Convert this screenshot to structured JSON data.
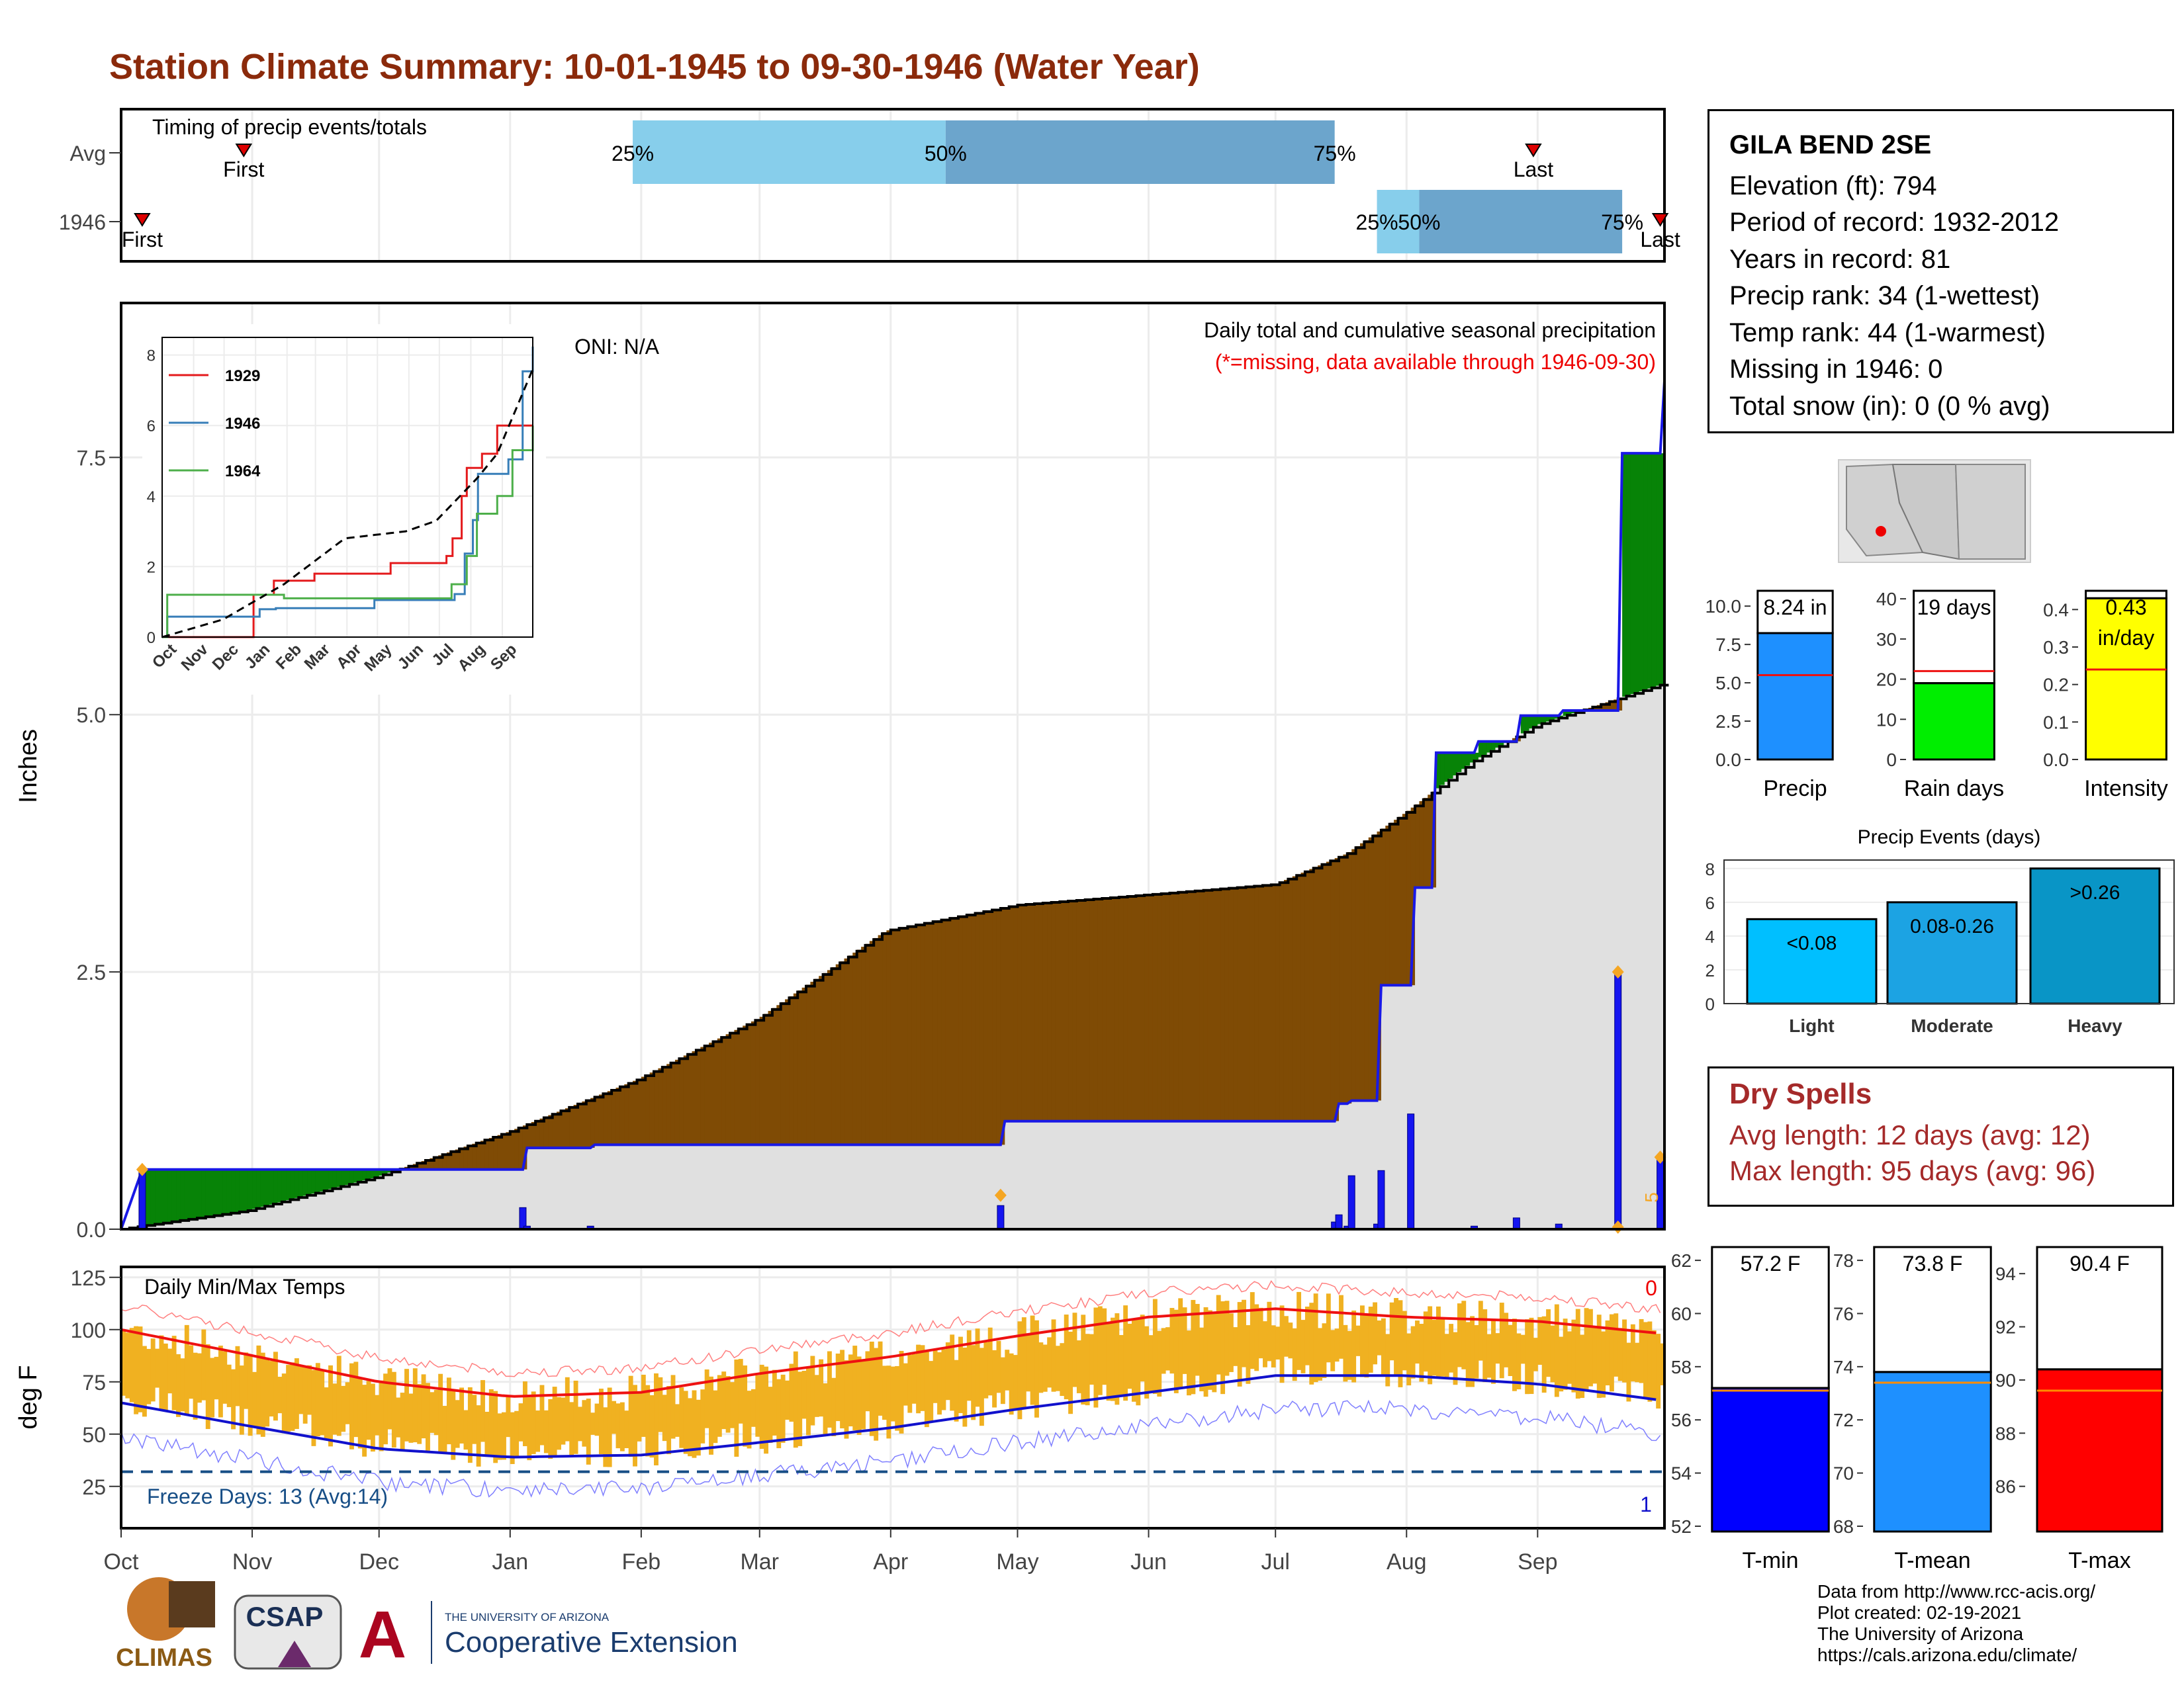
{
  "title": "Station Climate Summary: 10-01-1945 to 09-30-1946 (Water Year)",
  "months": [
    "Oct",
    "Nov",
    "Dec",
    "Jan",
    "Feb",
    "Mar",
    "Apr",
    "May",
    "Jun",
    "Jul",
    "Aug",
    "Sep"
  ],
  "timing": {
    "label": "Timing of precip events/totals",
    "rows": [
      "Avg",
      "1946"
    ],
    "avg": {
      "first": "First",
      "last": "Last",
      "p25": "25%",
      "p50": "50%",
      "p75": "75%"
    },
    "y1946": {
      "first": "First",
      "last": "Last",
      "p25": "25%",
      "p50": "50%",
      "p75": "75%"
    }
  },
  "precip_panel": {
    "ylabel": "Inches",
    "ticks": [
      "0.0",
      "2.5",
      "5.0",
      "7.5"
    ],
    "oni": "ONI: N/A",
    "caption": "Daily total and cumulative seasonal precipitation",
    "missing_note": "(*=missing, data available through 1946-09-30)",
    "side_mark": "5"
  },
  "inset": {
    "ticks": [
      "0",
      "2",
      "4",
      "6",
      "8"
    ],
    "months": [
      "Oct",
      "Nov",
      "Dec",
      "Jan",
      "Feb",
      "Mar",
      "Apr",
      "May",
      "Jun",
      "Jul",
      "Aug",
      "Sep"
    ],
    "legend": [
      "1929",
      "1946",
      "1964"
    ]
  },
  "temp_panel": {
    "ylabel": "deg F",
    "ticks": [
      "25",
      "50",
      "75",
      "100",
      "125"
    ],
    "label": "Daily Min/Max Temps",
    "freeze": "Freeze Days: 13 (Avg:14)",
    "count_top": "0",
    "count_bottom": "1"
  },
  "station": {
    "name": "GILA BEND 2SE",
    "lines": [
      "Elevation (ft): 794",
      "Period of record: 1932-2012",
      "Years in record: 81",
      "Precip rank: 34 (1-wettest)",
      "Temp rank: 44 (1-warmest)",
      "Missing in 1946: 0",
      "Total snow (in): 0 (0 % avg)"
    ]
  },
  "bars": {
    "precip": {
      "label": "Precip",
      "value_label": "8.24 in",
      "ticks": [
        "0.0",
        "2.5",
        "5.0",
        "7.5",
        "10.0"
      ]
    },
    "raindays": {
      "label": "Rain days",
      "value_label": "19 days",
      "ticks": [
        "0",
        "10",
        "20",
        "30",
        "40"
      ]
    },
    "intensity": {
      "label": "Intensity",
      "value_label": "0.43",
      "value_unit": "in/day",
      "ticks": [
        "0.0",
        "0.1",
        "0.2",
        "0.3",
        "0.4"
      ]
    }
  },
  "events": {
    "title": "Precip Events (days)",
    "ticks": [
      "0",
      "2",
      "4",
      "6",
      "8"
    ],
    "cats": [
      "Light",
      "Moderate",
      "Heavy"
    ],
    "labels": [
      "<0.08",
      "0.08-0.26",
      ">0.26"
    ]
  },
  "dry_spells": {
    "title": "Dry Spells",
    "avg": "Avg length: 12 days (avg: 12)",
    "max": "Max length: 95 days (avg: 96)"
  },
  "temps": {
    "tmin": {
      "label": "T-min",
      "value_label": "57.2 F",
      "ticks": [
        "52",
        "54",
        "56",
        "58",
        "60",
        "62"
      ]
    },
    "tmean": {
      "label": "T-mean",
      "value_label": "73.8 F",
      "ticks": [
        "68",
        "70",
        "72",
        "74",
        "76",
        "78"
      ]
    },
    "tmax": {
      "label": "T-max",
      "value_label": "90.4 F",
      "ticks": [
        "86",
        "88",
        "90",
        "92",
        "94"
      ]
    }
  },
  "logos": {
    "climas": "CLIMAS",
    "csap": "CSAP",
    "ua_small": "THE UNIVERSITY OF ARIZONA",
    "ua_big": "Cooperative Extension"
  },
  "credits": [
    "Data from http://www.rcc-acis.org/",
    "Plot created: 02-19-2021",
    "The University of Arizona",
    "https://cals.arizona.edu/climate/"
  ],
  "chart_data": [
    {
      "type": "line",
      "title": "Daily total and cumulative seasonal precipitation",
      "ylabel": "Inches",
      "ylim": [
        0,
        9
      ],
      "x_unit": "day of water year (Oct 1 = 0)",
      "series": [
        {
          "name": "1946",
          "x": [
            0,
            5,
            95,
            96,
            111,
            112,
            208,
            209,
            287,
            288,
            290,
            291,
            297,
            298,
            305,
            306,
            310,
            311,
            320,
            321,
            330,
            331,
            340,
            341,
            354,
            355,
            364,
            365
          ],
          "y": [
            0,
            0.58,
            0.58,
            0.79,
            0.79,
            0.82,
            0.82,
            1.05,
            1.05,
            1.22,
            1.22,
            1.25,
            1.25,
            2.37,
            2.37,
            3.32,
            3.32,
            4.63,
            4.63,
            4.74,
            4.74,
            4.99,
            4.99,
            5.04,
            5.04,
            7.54,
            7.54,
            8.24
          ]
        },
        {
          "name": "Avg",
          "x": [
            0,
            30,
            60,
            92,
            122,
            151,
            181,
            212,
            243,
            273,
            290,
            304,
            320,
            335,
            350,
            365
          ],
          "y": [
            0,
            0.18,
            0.5,
            0.95,
            1.45,
            2.05,
            2.9,
            3.15,
            3.25,
            3.35,
            3.65,
            4.05,
            4.55,
            4.9,
            5.1,
            5.3
          ]
        }
      ],
      "daily_precip": {
        "x": [
          5,
          95,
          96,
          111,
          208,
          287,
          288,
          290,
          291,
          297,
          298,
          305,
          320,
          330,
          340,
          354,
          364
        ],
        "y": [
          0.58,
          0.21,
          0.03,
          0.03,
          0.23,
          0.07,
          0.14,
          0.03,
          0.52,
          0.05,
          0.57,
          1.12,
          0.03,
          0.11,
          0.05,
          2.5,
          0.7
        ]
      }
    },
    {
      "type": "line",
      "title": "Cumulative precipitation inset",
      "ylim": [
        0,
        8.5
      ],
      "series": [
        {
          "name": "1929",
          "x": [
            0,
            60,
            90,
            110,
            150,
            215,
            225,
            262,
            280,
            286,
            295,
            300,
            315,
            330,
            365
          ],
          "y": [
            0,
            0,
            1.2,
            1.6,
            1.8,
            1.8,
            2.1,
            2.1,
            2.3,
            2.8,
            4.0,
            4.8,
            5.2,
            6.0,
            6.0
          ]
        },
        {
          "name": "1946",
          "x": [
            0,
            5,
            95,
            96,
            111,
            112,
            208,
            209,
            287,
            288,
            298,
            306,
            311,
            341,
            355,
            365
          ],
          "y": [
            0,
            0.58,
            0.58,
            0.79,
            0.79,
            0.82,
            0.82,
            1.05,
            1.05,
            1.22,
            2.37,
            3.32,
            4.63,
            5.04,
            7.54,
            8.24
          ]
        },
        {
          "name": "1964",
          "x": [
            0,
            5,
            90,
            120,
            262,
            285,
            300,
            310,
            330,
            345,
            365
          ],
          "y": [
            0,
            1.2,
            1.2,
            1.1,
            1.1,
            1.5,
            2.3,
            3.5,
            4.0,
            5.3,
            6.0
          ]
        },
        {
          "name": "Avg",
          "x": [
            0,
            60,
            120,
            180,
            240,
            270,
            290,
            310,
            330,
            365
          ],
          "y": [
            0,
            0.5,
            1.5,
            2.8,
            3.0,
            3.3,
            3.9,
            4.5,
            5.2,
            7.6
          ]
        }
      ]
    },
    {
      "type": "line",
      "title": "Daily Min/Max Temps",
      "ylabel": "deg F",
      "ylim": [
        0,
        130
      ],
      "series": [
        {
          "name": "Avg max",
          "x": [
            0,
            30,
            61,
            92,
            123,
            151,
            182,
            212,
            243,
            273,
            304,
            335,
            365
          ],
          "y": [
            100,
            88,
            75,
            68,
            70,
            79,
            87,
            97,
            106,
            110,
            106,
            104,
            98
          ]
        },
        {
          "name": "Avg min",
          "x": [
            0,
            30,
            61,
            92,
            123,
            151,
            182,
            212,
            243,
            273,
            304,
            335,
            365
          ],
          "y": [
            65,
            54,
            43,
            39,
            40,
            46,
            53,
            62,
            70,
            78,
            78,
            74,
            66
          ]
        }
      ],
      "freeze_line": 32
    },
    {
      "type": "bar",
      "title": "Precip",
      "categories": [
        "Precip"
      ],
      "values": [
        8.24
      ],
      "avg": 5.5,
      "ylim": [
        0,
        11
      ]
    },
    {
      "type": "bar",
      "title": "Rain days",
      "categories": [
        "Rain days"
      ],
      "values": [
        19
      ],
      "avg": 22,
      "ylim": [
        0,
        42
      ]
    },
    {
      "type": "bar",
      "title": "Intensity",
      "categories": [
        "Intensity"
      ],
      "values": [
        0.43
      ],
      "avg": 0.24,
      "ylim": [
        0,
        0.45
      ]
    },
    {
      "type": "bar",
      "title": "Precip Events (days)",
      "categories": [
        "Light",
        "Moderate",
        "Heavy"
      ],
      "values": [
        5,
        6,
        8
      ],
      "ylim": [
        0,
        8.5
      ]
    },
    {
      "type": "bar",
      "title": "T-min",
      "categories": [
        "T-min"
      ],
      "values": [
        57.2
      ],
      "avg": 57.1,
      "ylim": [
        51.8,
        62.5
      ]
    },
    {
      "type": "bar",
      "title": "T-mean",
      "categories": [
        "T-mean"
      ],
      "values": [
        73.8
      ],
      "avg": 73.4,
      "ylim": [
        67.8,
        78.5
      ]
    },
    {
      "type": "bar",
      "title": "T-max",
      "categories": [
        "T-max"
      ],
      "values": [
        90.4
      ],
      "avg": 89.6,
      "ylim": [
        84.3,
        95
      ]
    }
  ]
}
